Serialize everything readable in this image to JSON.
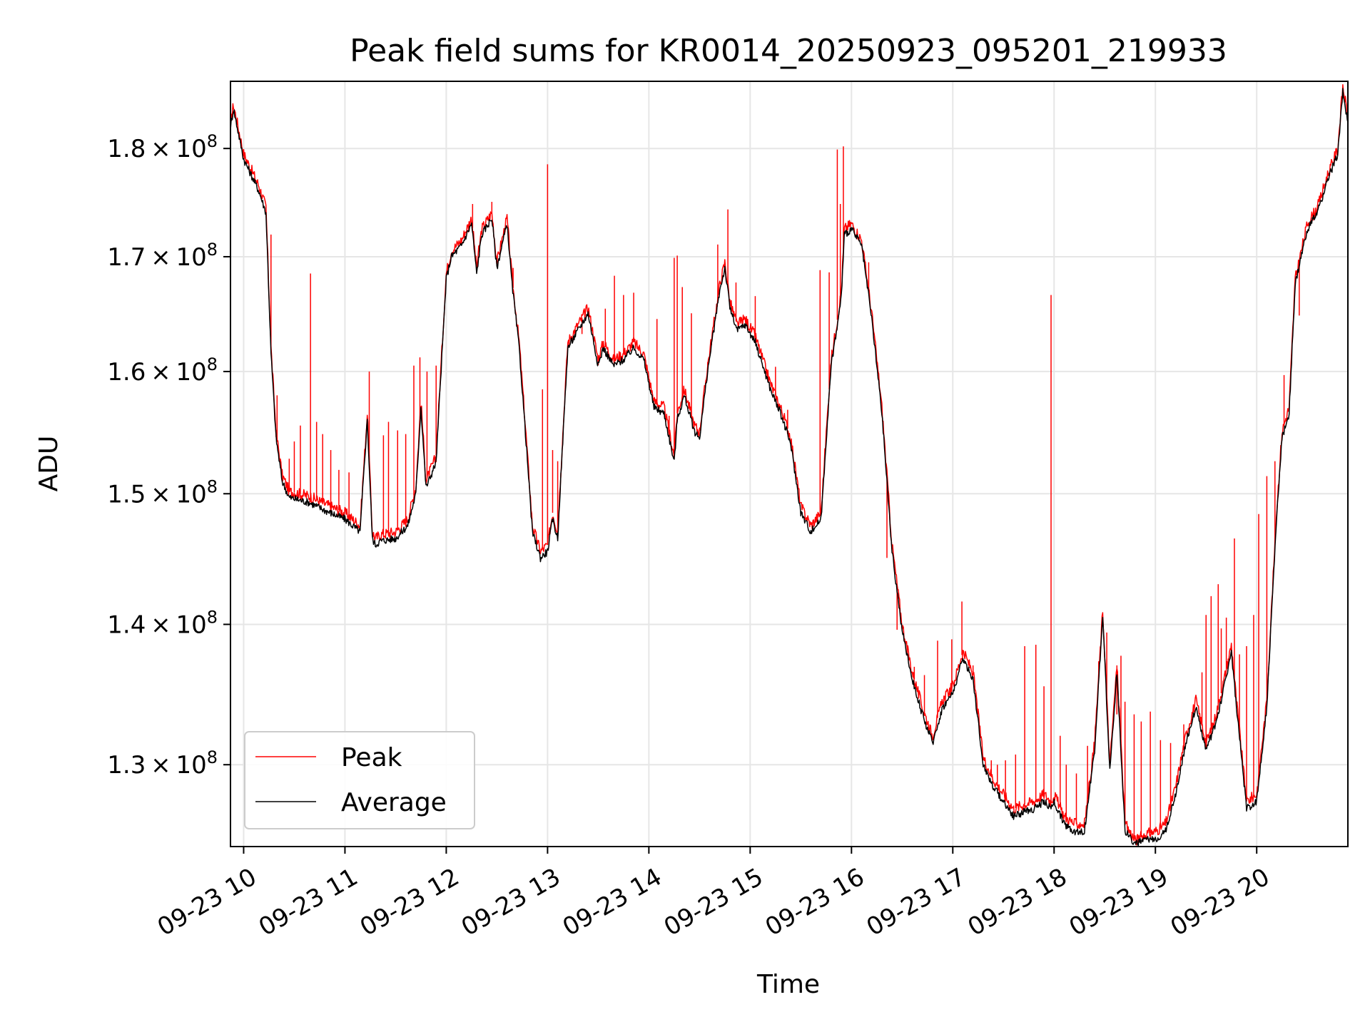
{
  "chart_data": {
    "type": "line",
    "title": "Peak field sums for KR0014_20250923_095201_219933",
    "xlabel": "Time",
    "ylabel": "ADU",
    "y_scale": "log",
    "x_unit": "hours (decimal, 2025-09-23)",
    "xlim": [
      9.87,
      20.9
    ],
    "ylim": [
      124500000,
      186500000
    ],
    "x_ticks": [
      {
        "value": 10,
        "label": "09-23 10"
      },
      {
        "value": 11,
        "label": "09-23 11"
      },
      {
        "value": 12,
        "label": "09-23 12"
      },
      {
        "value": 13,
        "label": "09-23 13"
      },
      {
        "value": 14,
        "label": "09-23 14"
      },
      {
        "value": 15,
        "label": "09-23 15"
      },
      {
        "value": 16,
        "label": "09-23 16"
      },
      {
        "value": 17,
        "label": "09-23 17"
      },
      {
        "value": 18,
        "label": "09-23 18"
      },
      {
        "value": 19,
        "label": "09-23 19"
      },
      {
        "value": 20,
        "label": "09-23 20"
      }
    ],
    "y_ticks": [
      {
        "value": 130000000,
        "mantissa": "1.3",
        "base": "10",
        "exp": "8"
      },
      {
        "value": 140000000,
        "mantissa": "1.4",
        "base": "10",
        "exp": "8"
      },
      {
        "value": 150000000,
        "mantissa": "1.5",
        "base": "10",
        "exp": "8"
      },
      {
        "value": 160000000,
        "mantissa": "1.6",
        "base": "10",
        "exp": "8"
      },
      {
        "value": 170000000,
        "mantissa": "1.7",
        "base": "10",
        "exp": "8"
      },
      {
        "value": 180000000,
        "mantissa": "1.8",
        "base": "10",
        "exp": "8"
      }
    ],
    "grid": true,
    "legend_position": "bottom-left",
    "series": [
      {
        "name": "Peak",
        "color": "#ff0000",
        "x": [
          9.87,
          9.9,
          10.0,
          10.15,
          10.22,
          10.27,
          10.32,
          10.38,
          10.45,
          10.55,
          10.65,
          10.8,
          11.0,
          11.15,
          11.22,
          11.27,
          11.3,
          11.35,
          11.5,
          11.62,
          11.7,
          11.75,
          11.8,
          11.9,
          12.0,
          12.05,
          12.15,
          12.25,
          12.3,
          12.35,
          12.45,
          12.5,
          12.6,
          12.65,
          12.72,
          12.85,
          12.93,
          13.0,
          13.05,
          13.1,
          13.2,
          13.3,
          13.4,
          13.5,
          13.55,
          13.65,
          13.75,
          13.85,
          13.95,
          14.05,
          14.15,
          14.25,
          14.28,
          14.35,
          14.45,
          14.5,
          14.58,
          14.7,
          14.75,
          14.8,
          14.87,
          14.95,
          15.05,
          15.2,
          15.3,
          15.4,
          15.5,
          15.6,
          15.7,
          15.8,
          15.87,
          15.9,
          15.93,
          16.0,
          16.1,
          16.2,
          16.3,
          16.4,
          16.5,
          16.6,
          16.7,
          16.8,
          16.9,
          17.0,
          17.1,
          17.2,
          17.3,
          17.4,
          17.5,
          17.6,
          17.7,
          17.8,
          17.9,
          17.97,
          18.0,
          18.1,
          18.2,
          18.3,
          18.4,
          18.48,
          18.55,
          18.62,
          18.7,
          18.8,
          18.9,
          19.0,
          19.1,
          19.2,
          19.3,
          19.4,
          19.5,
          19.58,
          19.65,
          19.75,
          19.8,
          19.9,
          20.0,
          20.1,
          20.2,
          20.25,
          20.32,
          20.38,
          20.5,
          20.6,
          20.7,
          20.8,
          20.85,
          20.9
        ],
        "values": [
          182500000,
          184200000,
          179500000,
          176500000,
          174500000,
          162000000,
          155000000,
          151500000,
          150200000,
          150000000,
          149800000,
          149200000,
          148500000,
          147500000,
          156500000,
          147000000,
          146500000,
          146800000,
          147000000,
          148000000,
          150500000,
          157500000,
          151000000,
          153000000,
          168500000,
          170500000,
          171500000,
          173500000,
          169000000,
          172500000,
          174000000,
          169500000,
          173500000,
          168000000,
          162500000,
          147500000,
          145500000,
          146000000,
          148500000,
          147000000,
          162500000,
          164000000,
          165500000,
          161000000,
          162500000,
          161000000,
          161500000,
          162500000,
          161500000,
          157500000,
          157000000,
          153000000,
          156500000,
          158500000,
          155500000,
          155000000,
          160500000,
          167500000,
          169500000,
          166000000,
          164000000,
          164500000,
          163000000,
          159000000,
          157000000,
          154500000,
          149000000,
          147500000,
          148500000,
          161000000,
          165000000,
          167000000,
          172500000,
          173000000,
          171500000,
          165000000,
          157000000,
          146000000,
          140000000,
          136500000,
          134000000,
          132000000,
          134500000,
          135500000,
          138000000,
          136500000,
          130500000,
          129000000,
          128000000,
          127000000,
          127300000,
          127500000,
          128000000,
          127500000,
          128000000,
          126500000,
          126000000,
          126000000,
          131500000,
          141000000,
          130000000,
          137000000,
          126000000,
          124900000,
          125300000,
          125500000,
          126000000,
          128500000,
          132000000,
          134500000,
          131500000,
          133000000,
          135000000,
          138500000,
          134500000,
          127500000,
          128000000,
          134500000,
          149000000,
          155000000,
          157000000,
          168000000,
          173000000,
          174500000,
          177500000,
          180000000,
          186000000,
          183000000
        ]
      },
      {
        "name": "Average",
        "color": "#000000",
        "x": [
          9.87,
          9.9,
          10.0,
          10.15,
          10.22,
          10.27,
          10.32,
          10.38,
          10.45,
          10.55,
          10.65,
          10.8,
          11.0,
          11.15,
          11.22,
          11.27,
          11.3,
          11.35,
          11.5,
          11.62,
          11.7,
          11.75,
          11.8,
          11.9,
          12.0,
          12.05,
          12.15,
          12.25,
          12.3,
          12.35,
          12.45,
          12.5,
          12.6,
          12.65,
          12.72,
          12.85,
          12.93,
          13.0,
          13.05,
          13.1,
          13.2,
          13.3,
          13.4,
          13.5,
          13.55,
          13.65,
          13.75,
          13.85,
          13.95,
          14.05,
          14.15,
          14.25,
          14.28,
          14.35,
          14.45,
          14.5,
          14.58,
          14.7,
          14.75,
          14.8,
          14.87,
          14.95,
          15.05,
          15.2,
          15.3,
          15.4,
          15.5,
          15.6,
          15.7,
          15.8,
          15.87,
          15.9,
          15.93,
          16.0,
          16.1,
          16.2,
          16.3,
          16.4,
          16.5,
          16.6,
          16.7,
          16.8,
          16.9,
          17.0,
          17.1,
          17.2,
          17.3,
          17.4,
          17.5,
          17.6,
          17.7,
          17.8,
          17.9,
          17.97,
          18.0,
          18.1,
          18.2,
          18.3,
          18.4,
          18.48,
          18.55,
          18.62,
          18.7,
          18.8,
          18.9,
          19.0,
          19.1,
          19.2,
          19.3,
          19.4,
          19.5,
          19.58,
          19.65,
          19.75,
          19.8,
          19.9,
          20.0,
          20.1,
          20.2,
          20.25,
          20.32,
          20.38,
          20.5,
          20.6,
          20.7,
          20.8,
          20.85,
          20.9
        ],
        "values": [
          182000000,
          183800000,
          179000000,
          176000000,
          174000000,
          161500000,
          154500000,
          151000000,
          149700000,
          149500000,
          149300000,
          148700000,
          148000000,
          147000000,
          156000000,
          146500000,
          146000000,
          146300000,
          146500000,
          147500000,
          150000000,
          157000000,
          150500000,
          152500000,
          168000000,
          170000000,
          171000000,
          173000000,
          168500000,
          172000000,
          173500000,
          169000000,
          173000000,
          167500000,
          162000000,
          147000000,
          145000000,
          145500000,
          148000000,
          146500000,
          162000000,
          163500000,
          165000000,
          160500000,
          162000000,
          160500000,
          161000000,
          162000000,
          161000000,
          157000000,
          156500000,
          152500000,
          156000000,
          158000000,
          155000000,
          154500000,
          160000000,
          167000000,
          169000000,
          165500000,
          163500000,
          164000000,
          162500000,
          158500000,
          156500000,
          154000000,
          148500000,
          147000000,
          148000000,
          160500000,
          164500000,
          166500000,
          172000000,
          172500000,
          171000000,
          164500000,
          156500000,
          145500000,
          139500000,
          136000000,
          133500000,
          131500000,
          134000000,
          135000000,
          137500000,
          136000000,
          130000000,
          128500000,
          127500000,
          126500000,
          126800000,
          127000000,
          127500000,
          127000000,
          127500000,
          126000000,
          125500000,
          125500000,
          131000000,
          140500000,
          129500000,
          136500000,
          125500000,
          124700000,
          124900000,
          125000000,
          125500000,
          128000000,
          131500000,
          134000000,
          131000000,
          132500000,
          134500000,
          138000000,
          134000000,
          127000000,
          127500000,
          134000000,
          148500000,
          154500000,
          156500000,
          167500000,
          172500000,
          174000000,
          177000000,
          179500000,
          185500000,
          182500000
        ]
      }
    ],
    "spikes": {
      "x": [
        10.27,
        10.33,
        10.45,
        10.5,
        10.56,
        10.66,
        10.72,
        10.78,
        10.86,
        10.94,
        11.04,
        11.24,
        11.38,
        11.43,
        11.52,
        11.6,
        11.68,
        11.74,
        11.81,
        11.9,
        12.22,
        12.26,
        12.32,
        12.45,
        12.66,
        12.95,
        13.0,
        13.05,
        13.1,
        13.34,
        13.57,
        13.66,
        13.75,
        13.85,
        14.08,
        14.2,
        14.25,
        14.28,
        14.33,
        14.42,
        14.58,
        14.68,
        14.78,
        14.86,
        15.05,
        15.25,
        15.37,
        15.69,
        15.78,
        15.86,
        15.89,
        15.92,
        16.17,
        16.35,
        16.45,
        16.55,
        16.62,
        16.72,
        16.85,
        16.99,
        17.09,
        17.2,
        17.38,
        17.44,
        17.52,
        17.62,
        17.71,
        17.82,
        17.9,
        17.97,
        18.06,
        18.12,
        18.22,
        18.33,
        18.44,
        18.52,
        18.62,
        18.66,
        18.7,
        18.79,
        18.86,
        18.95,
        19.05,
        19.15,
        19.28,
        19.38,
        19.46,
        19.5,
        19.55,
        19.62,
        19.65,
        19.7,
        19.78,
        19.83,
        19.9,
        19.97,
        20.02,
        20.1,
        20.18,
        20.27,
        20.42,
        20.6
      ],
      "values": [
        172000000,
        158000000,
        152800000,
        154200000,
        155500000,
        168500000,
        155800000,
        154800000,
        153500000,
        151900000,
        151700000,
        160000000,
        154700000,
        155800000,
        155100000,
        154800000,
        160500000,
        161200000,
        160000000,
        160500000,
        172200000,
        174800000,
        171000000,
        175000000,
        169000000,
        158500000,
        178500000,
        153500000,
        152600000,
        163200000,
        165400000,
        168300000,
        166600000,
        166800000,
        164500000,
        156300000,
        169900000,
        170100000,
        167300000,
        165000000,
        160800000,
        171100000,
        174300000,
        167700000,
        166500000,
        160400000,
        156800000,
        168800000,
        168600000,
        179900000,
        174800000,
        180200000,
        169500000,
        145000000,
        139600000,
        137700000,
        136900000,
        136300000,
        138800000,
        138900000,
        141700000,
        137000000,
        130300000,
        130000000,
        130300000,
        130700000,
        138400000,
        138500000,
        135500000,
        166600000,
        132000000,
        130000000,
        129400000,
        131300000,
        137300000,
        139400000,
        133500000,
        137700000,
        134400000,
        133500000,
        133000000,
        133700000,
        131700000,
        131500000,
        132800000,
        134000000,
        136500000,
        140700000,
        142100000,
        143000000,
        139700000,
        140500000,
        146500000,
        137800000,
        138400000,
        140700000,
        148400000,
        151400000,
        152600000,
        159700000,
        164800000,
        174700000
      ]
    }
  },
  "legend": {
    "items": [
      {
        "label": "Peak",
        "color": "#ff0000"
      },
      {
        "label": "Average",
        "color": "#000000"
      }
    ]
  }
}
